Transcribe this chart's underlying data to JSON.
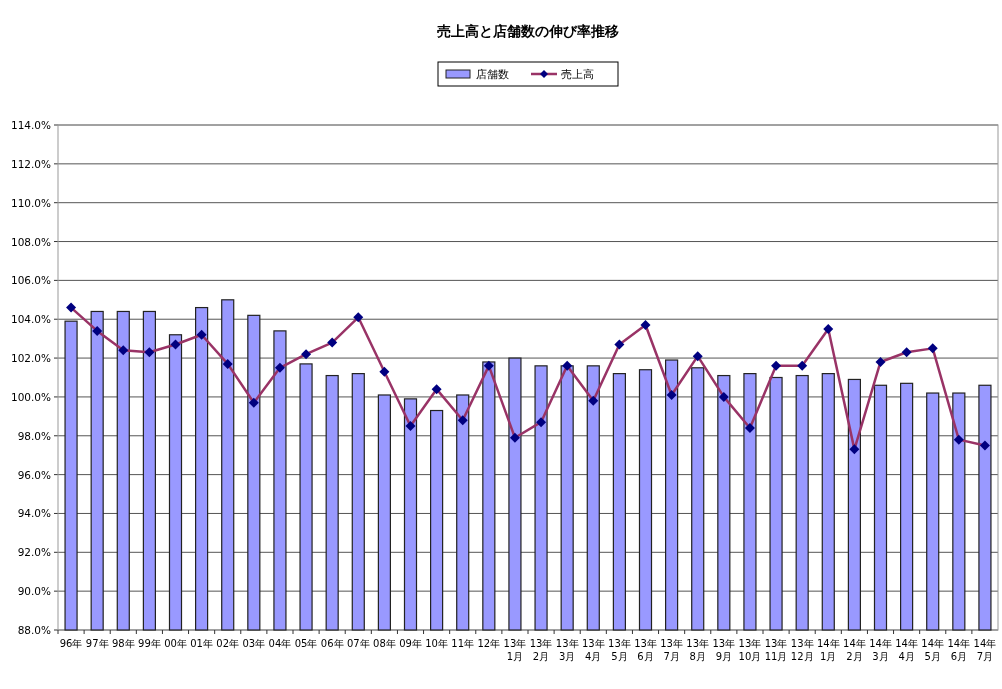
{
  "chart_data": {
    "type": "bar",
    "title": "売上高と店舗数の伸び率推移",
    "categories": [
      "96年",
      "97年",
      "98年",
      "99年",
      "00年",
      "01年",
      "02年",
      "03年",
      "04年",
      "05年",
      "06年",
      "07年",
      "08年",
      "09年",
      "10年",
      "11年",
      "12年",
      "13年\n1月",
      "13年\n2月",
      "13年\n3月",
      "13年\n4月",
      "13年\n5月",
      "13年\n6月",
      "13年\n7月",
      "13年\n8月",
      "13年\n9月",
      "13年\n10月",
      "13年\n11月",
      "13年\n12月",
      "14年\n1月",
      "14年\n2月",
      "14年\n3月",
      "14年\n4月",
      "14年\n5月",
      "14年\n6月",
      "14年\n7月"
    ],
    "series": [
      {
        "name": "店舗数",
        "color": "#9999ff",
        "values": [
          103.9,
          104.4,
          104.4,
          104.4,
          103.2,
          104.6,
          105.0,
          104.2,
          103.4,
          101.7,
          101.1,
          101.2,
          100.1,
          99.9,
          99.3,
          100.1,
          101.8,
          102.0,
          101.6,
          101.6,
          101.6,
          101.2,
          101.4,
          101.9,
          101.5,
          101.1,
          101.2,
          101.0,
          101.1,
          101.2,
          100.9,
          100.6,
          100.7,
          100.2,
          100.2,
          100.6
        ]
      },
      {
        "name": "売上高",
        "type": "line",
        "color": "#993366",
        "marker": "diamond",
        "line_style": "solid",
        "values": [
          104.6,
          103.4,
          102.4,
          102.3,
          102.7,
          103.2,
          101.7,
          99.7,
          101.5,
          102.2,
          102.8,
          104.1,
          101.3,
          98.5,
          100.4,
          98.8,
          101.6,
          97.9,
          98.7,
          101.6,
          99.8,
          102.7,
          103.7,
          100.1,
          102.1,
          100.0,
          98.4,
          101.6,
          101.6,
          103.5,
          97.3,
          101.8,
          102.3,
          102.5,
          97.8,
          97.5
        ]
      }
    ],
    "ylim": [
      88,
      114
    ],
    "yticks": [
      {
        "value": 88,
        "label": "88.0%"
      },
      {
        "value": 90,
        "label": "90.0%"
      },
      {
        "value": 92,
        "label": "92.0%"
      },
      {
        "value": 94,
        "label": "94.0%"
      },
      {
        "value": 96,
        "label": "96.0%"
      },
      {
        "value": 98,
        "label": "98.0%"
      },
      {
        "value": 100,
        "label": "100.0%"
      },
      {
        "value": 102,
        "label": "102.0%"
      },
      {
        "value": 104,
        "label": "104.0%"
      },
      {
        "value": 106,
        "label": "106.0%"
      },
      {
        "value": 108,
        "label": "108.0%"
      },
      {
        "value": 110,
        "label": "110.0%"
      },
      {
        "value": 112,
        "label": "112.0%"
      },
      {
        "value": 114,
        "label": "114.0%"
      }
    ],
    "grid": "y",
    "legend": "top"
  }
}
